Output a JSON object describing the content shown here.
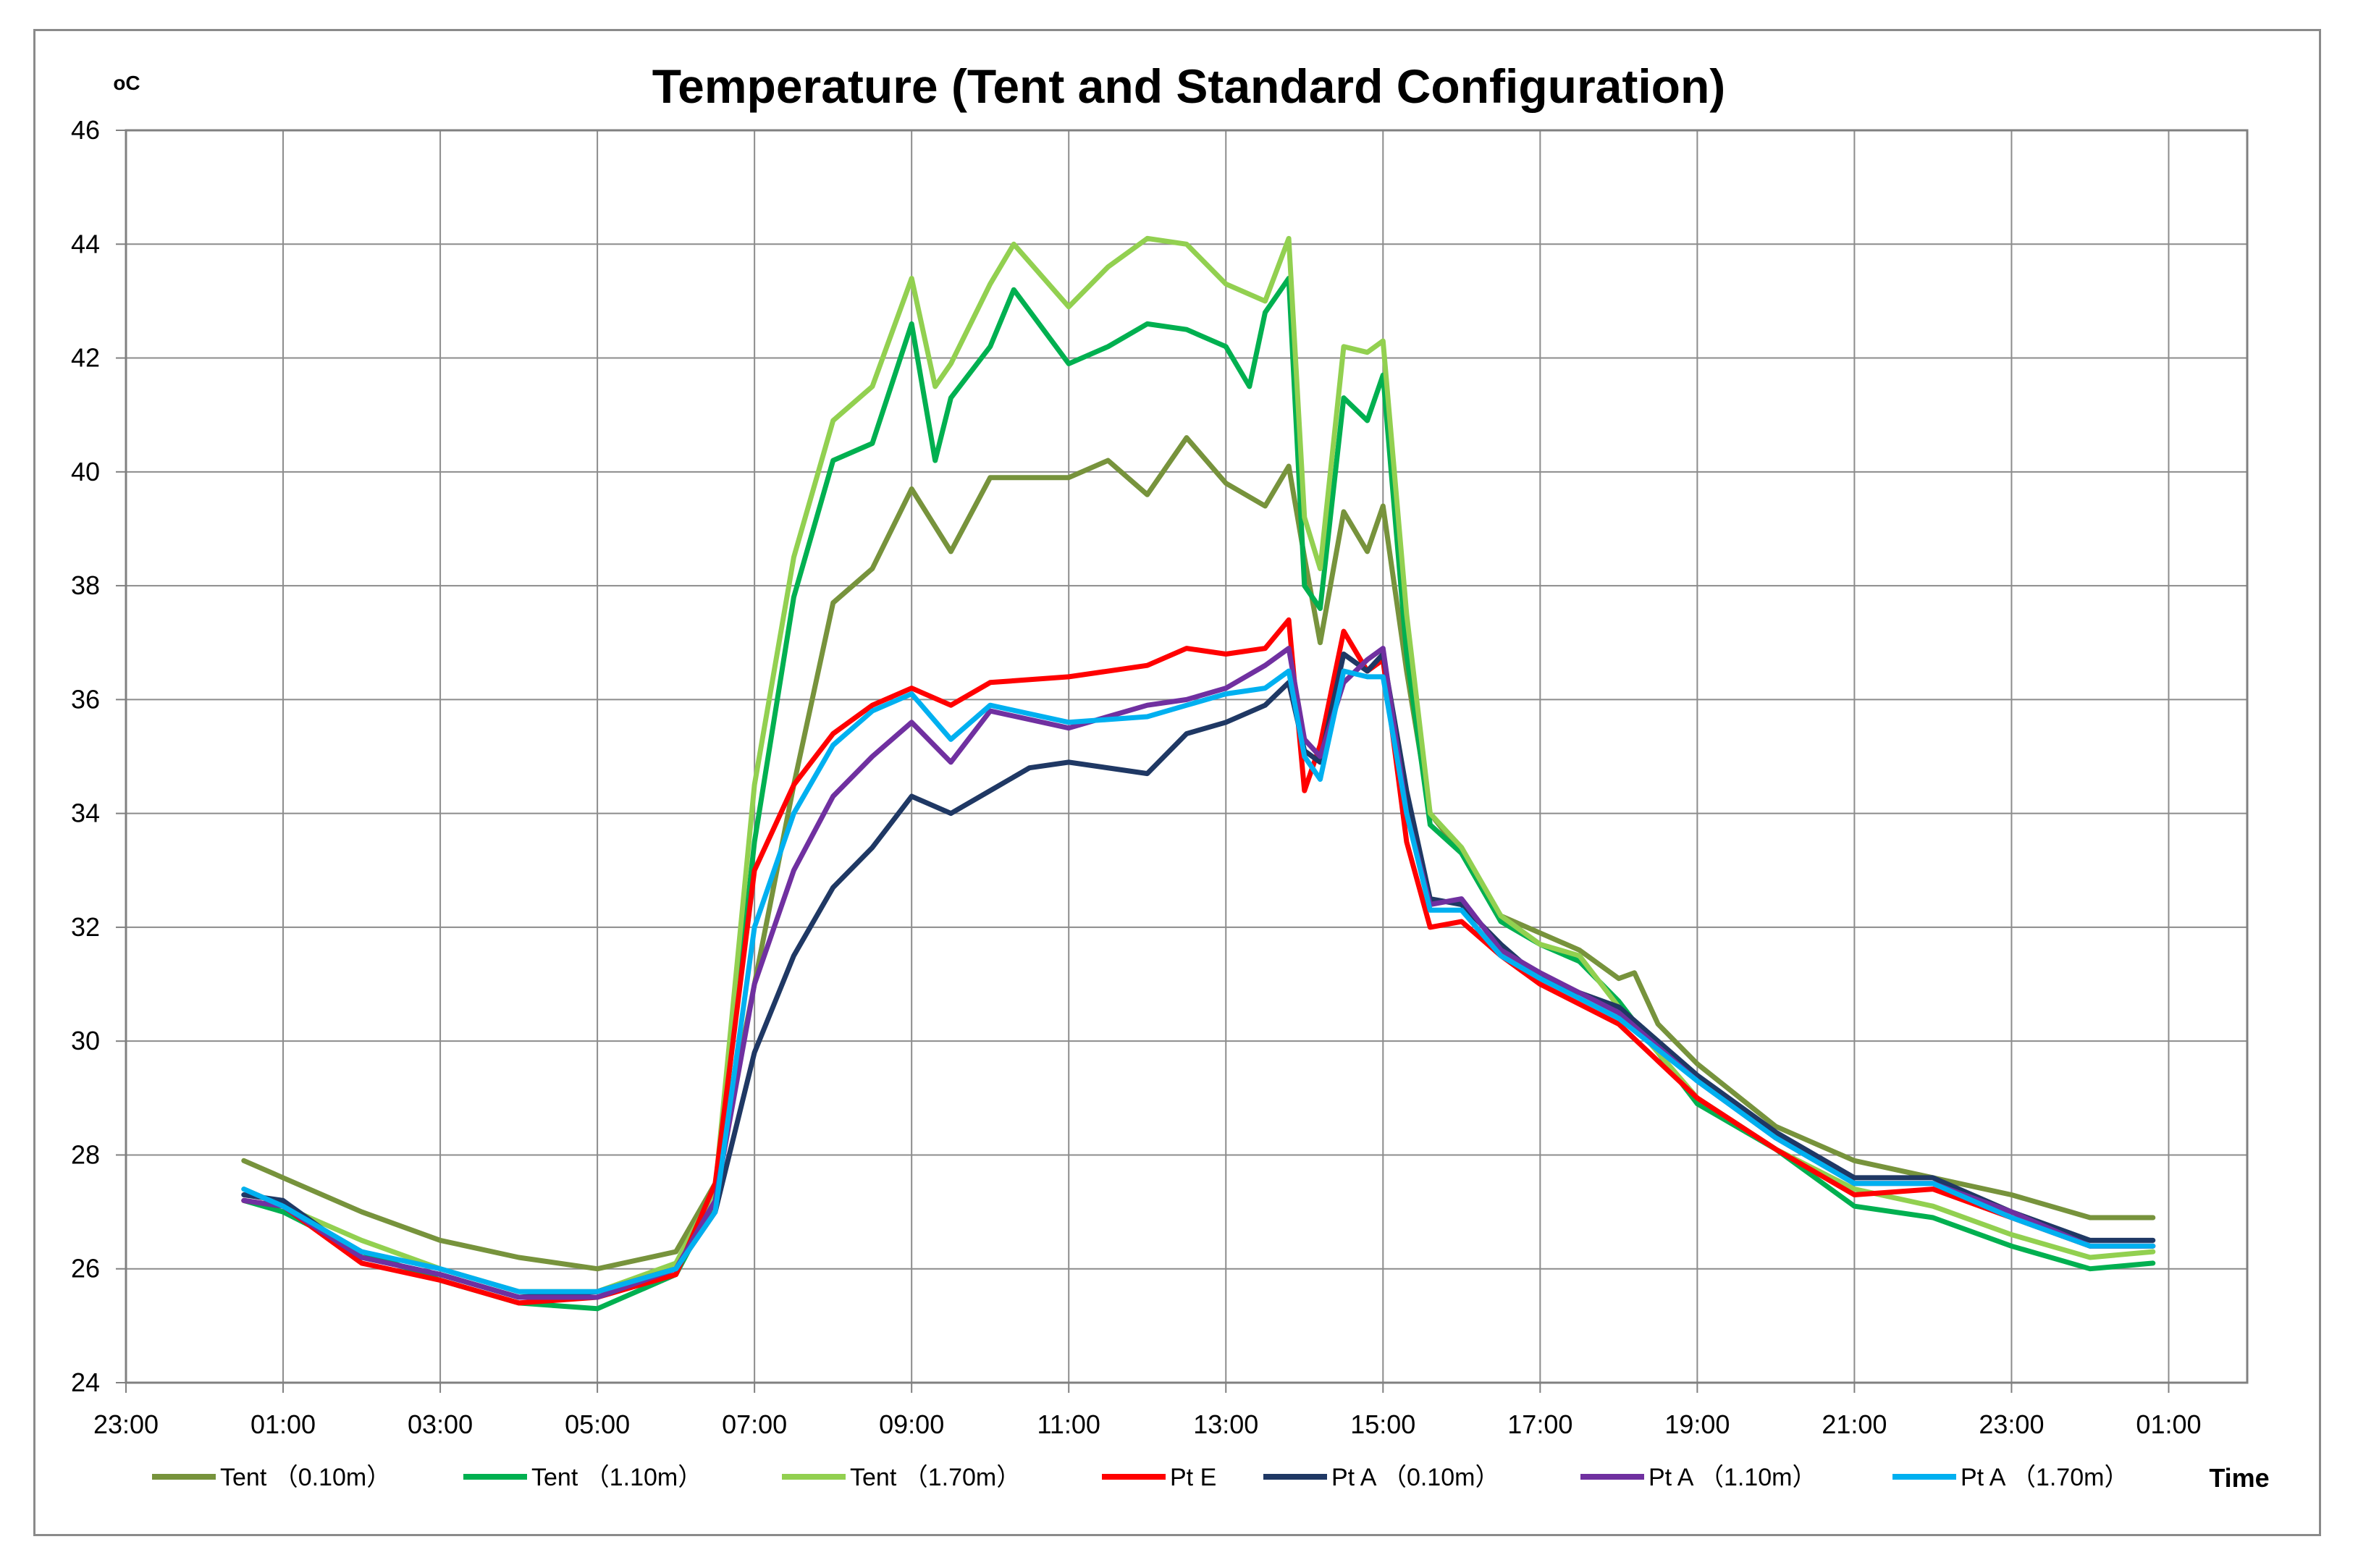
{
  "chart_data": {
    "type": "line",
    "title": "Temperature (Tent and Standard Configuration)",
    "ylabel": "oC",
    "xlabel": "Time",
    "ylim": [
      24,
      46
    ],
    "yticks": [
      24,
      26,
      28,
      30,
      32,
      34,
      36,
      38,
      40,
      42,
      44,
      46
    ],
    "xlim": [
      -1,
      26
    ],
    "xticks": [
      -1,
      1,
      3,
      5,
      7,
      9,
      11,
      13,
      15,
      17,
      19,
      21,
      23,
      25
    ],
    "xtick_labels": [
      "23:00",
      "01:00",
      "03:00",
      "05:00",
      "07:00",
      "09:00",
      "11:00",
      "13:00",
      "15:00",
      "17:00",
      "19:00",
      "21:00",
      "23:00",
      "01:00"
    ],
    "grid": true,
    "legend_position": "bottom",
    "series": [
      {
        "name": "Tent （0.10m）",
        "color": "#77933c",
        "x": [
          0.5,
          1.0,
          2.0,
          3.0,
          4.0,
          5.0,
          6.0,
          6.5,
          7.0,
          7.5,
          8.0,
          8.5,
          9.0,
          9.5,
          10.0,
          11.0,
          11.5,
          12.0,
          12.5,
          13.0,
          13.5,
          13.8,
          14.0,
          14.2,
          14.5,
          14.8,
          15.0,
          15.3,
          15.6,
          16.0,
          16.5,
          17.0,
          17.5,
          18.0,
          18.2,
          18.5,
          19.0,
          20.0,
          21.0,
          22.0,
          23.0,
          24.0,
          24.8
        ],
        "y": [
          27.9,
          27.6,
          27.0,
          26.5,
          26.2,
          26.0,
          26.3,
          27.5,
          31.0,
          34.5,
          37.7,
          38.3,
          39.7,
          38.6,
          39.9,
          39.9,
          40.2,
          39.6,
          40.6,
          39.8,
          39.4,
          40.1,
          38.5,
          37.0,
          39.3,
          38.6,
          39.4,
          36.5,
          34.0,
          33.3,
          32.2,
          31.9,
          31.6,
          31.1,
          31.2,
          30.3,
          29.6,
          28.5,
          27.9,
          27.6,
          27.3,
          26.9,
          26.9
        ]
      },
      {
        "name": "Tent （1.10m）",
        "color": "#00b050",
        "x": [
          0.5,
          1.0,
          2.0,
          3.0,
          4.0,
          5.0,
          6.0,
          6.5,
          7.0,
          7.5,
          8.0,
          8.5,
          9.0,
          9.3,
          9.5,
          10.0,
          10.3,
          11.0,
          11.5,
          12.0,
          12.5,
          13.0,
          13.3,
          13.5,
          13.8,
          14.0,
          14.2,
          14.5,
          14.8,
          15.0,
          15.3,
          15.6,
          16.0,
          16.5,
          17.0,
          17.5,
          18.0,
          18.5,
          19.0,
          20.0,
          21.0,
          22.0,
          23.0,
          24.0,
          24.8
        ],
        "y": [
          27.2,
          27.0,
          26.3,
          25.8,
          25.4,
          25.3,
          25.9,
          27.2,
          33.5,
          37.8,
          40.2,
          40.5,
          42.6,
          40.2,
          41.3,
          42.2,
          43.2,
          41.9,
          42.2,
          42.6,
          42.5,
          42.2,
          41.5,
          42.8,
          43.4,
          38.0,
          37.6,
          41.3,
          40.9,
          41.7,
          36.8,
          33.8,
          33.3,
          32.1,
          31.7,
          31.4,
          30.7,
          29.8,
          28.9,
          28.1,
          27.1,
          26.9,
          26.4,
          26.0,
          26.1
        ]
      },
      {
        "name": "Tent （1.70m）",
        "color": "#92d050",
        "x": [
          0.5,
          1.0,
          2.0,
          3.0,
          4.0,
          5.0,
          6.0,
          6.5,
          7.0,
          7.5,
          8.0,
          8.5,
          9.0,
          9.3,
          9.5,
          10.0,
          10.3,
          11.0,
          11.5,
          12.0,
          12.5,
          13.0,
          13.5,
          13.8,
          14.0,
          14.2,
          14.5,
          14.8,
          15.0,
          15.3,
          15.6,
          16.0,
          16.5,
          17.0,
          17.5,
          18.0,
          18.5,
          19.0,
          20.0,
          21.0,
          22.0,
          23.0,
          24.0,
          24.8
        ],
        "y": [
          27.4,
          27.1,
          26.5,
          26.0,
          25.6,
          25.6,
          26.1,
          27.4,
          34.5,
          38.5,
          40.9,
          41.5,
          43.4,
          41.5,
          41.9,
          43.3,
          44.0,
          42.9,
          43.6,
          44.1,
          44.0,
          43.3,
          43.0,
          44.1,
          39.2,
          38.3,
          42.2,
          42.1,
          42.3,
          37.5,
          34.0,
          33.4,
          32.2,
          31.7,
          31.5,
          30.6,
          29.8,
          29.0,
          28.1,
          27.4,
          27.1,
          26.6,
          26.2,
          26.3
        ]
      },
      {
        "name": "Pt E",
        "color": "#ff0000",
        "x": [
          0.5,
          1.0,
          2.0,
          3.0,
          4.0,
          5.0,
          6.0,
          6.5,
          7.0,
          7.5,
          8.0,
          8.5,
          9.0,
          9.5,
          10.0,
          11.0,
          12.0,
          12.5,
          13.0,
          13.5,
          13.8,
          14.0,
          14.2,
          14.5,
          14.8,
          15.0,
          15.3,
          15.6,
          16.0,
          16.5,
          17.0,
          18.0,
          19.0,
          20.0,
          21.0,
          22.0,
          23.0,
          24.0,
          24.8
        ],
        "y": [
          27.2,
          27.1,
          26.1,
          25.8,
          25.4,
          25.5,
          25.9,
          27.5,
          33.0,
          34.5,
          35.4,
          35.9,
          36.2,
          35.9,
          36.3,
          36.4,
          36.6,
          36.9,
          36.8,
          36.9,
          37.4,
          34.4,
          35.2,
          37.2,
          36.5,
          36.7,
          33.5,
          32.0,
          32.1,
          31.5,
          31.0,
          30.3,
          29.0,
          28.1,
          27.3,
          27.4,
          26.9,
          26.4,
          26.4
        ]
      },
      {
        "name": "Pt A （0.10m）",
        "color": "#1f3864",
        "x": [
          0.5,
          1.0,
          2.0,
          3.0,
          4.0,
          5.0,
          6.0,
          6.5,
          7.0,
          7.5,
          8.0,
          8.5,
          9.0,
          9.5,
          10.0,
          10.5,
          11.0,
          12.0,
          12.5,
          13.0,
          13.5,
          13.8,
          14.0,
          14.2,
          14.5,
          14.8,
          15.0,
          15.3,
          15.6,
          16.0,
          16.5,
          17.0,
          18.0,
          19.0,
          20.0,
          21.0,
          22.0,
          23.0,
          24.0,
          24.8
        ],
        "y": [
          27.3,
          27.2,
          26.2,
          25.9,
          25.5,
          25.6,
          26.0,
          27.0,
          29.8,
          31.5,
          32.7,
          33.4,
          34.3,
          34.0,
          34.4,
          34.8,
          34.9,
          34.7,
          35.4,
          35.6,
          35.9,
          36.3,
          35.1,
          34.9,
          36.8,
          36.5,
          36.8,
          34.4,
          32.5,
          32.4,
          31.7,
          31.1,
          30.6,
          29.4,
          28.4,
          27.6,
          27.6,
          27.0,
          26.5,
          26.5
        ]
      },
      {
        "name": "Pt A （1.10m）",
        "color": "#7030a0",
        "x": [
          0.5,
          1.0,
          2.0,
          3.0,
          4.0,
          5.0,
          6.0,
          6.5,
          7.0,
          7.5,
          8.0,
          8.5,
          9.0,
          9.5,
          10.0,
          11.0,
          12.0,
          12.5,
          13.0,
          13.5,
          13.8,
          14.0,
          14.2,
          14.5,
          14.8,
          15.0,
          15.3,
          15.6,
          16.0,
          16.5,
          17.0,
          18.0,
          19.0,
          20.0,
          21.0,
          22.0,
          23.0,
          24.0,
          24.8
        ],
        "y": [
          27.2,
          27.1,
          26.2,
          25.9,
          25.5,
          25.5,
          26.0,
          27.2,
          31.0,
          33.0,
          34.3,
          35.0,
          35.6,
          34.9,
          35.8,
          35.5,
          35.9,
          36.0,
          36.2,
          36.6,
          36.9,
          35.3,
          35.0,
          36.3,
          36.7,
          36.9,
          34.0,
          32.4,
          32.5,
          31.6,
          31.2,
          30.5,
          29.3,
          28.3,
          27.5,
          27.5,
          27.0,
          26.4,
          26.4
        ]
      },
      {
        "name": "Pt A （1.70m）",
        "color": "#00b0f0",
        "x": [
          0.5,
          1.0,
          2.0,
          3.0,
          4.0,
          5.0,
          6.0,
          6.5,
          7.0,
          7.5,
          8.0,
          8.5,
          9.0,
          9.5,
          10.0,
          11.0,
          12.0,
          12.5,
          13.0,
          13.5,
          13.8,
          14.0,
          14.2,
          14.5,
          14.8,
          15.0,
          15.3,
          15.6,
          16.0,
          16.5,
          17.0,
          18.0,
          19.0,
          20.0,
          21.0,
          22.0,
          23.0,
          24.0,
          24.8
        ],
        "y": [
          27.4,
          27.1,
          26.3,
          26.0,
          25.6,
          25.6,
          26.0,
          27.0,
          32.0,
          34.0,
          35.2,
          35.8,
          36.1,
          35.3,
          35.9,
          35.6,
          35.7,
          35.9,
          36.1,
          36.2,
          36.5,
          35.0,
          34.6,
          36.5,
          36.4,
          36.4,
          34.0,
          32.3,
          32.3,
          31.5,
          31.1,
          30.4,
          29.3,
          28.3,
          27.5,
          27.5,
          26.9,
          26.4,
          26.4
        ]
      }
    ]
  }
}
